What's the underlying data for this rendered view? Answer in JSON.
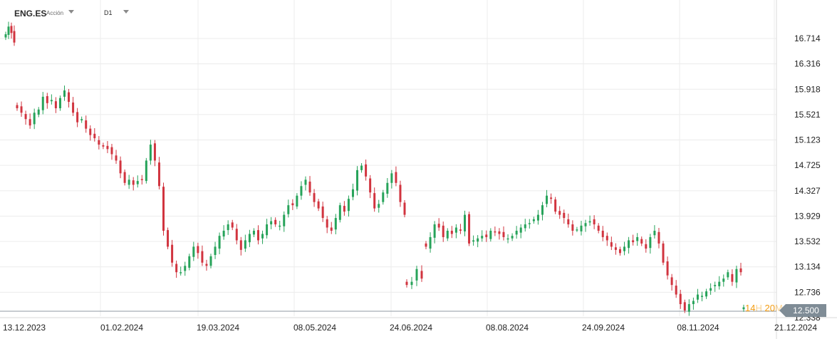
{
  "header": {
    "symbol": "ENG.ES",
    "asset_type": "Acción",
    "timeframe": "D1"
  },
  "countdown": {
    "h": "14",
    "h_unit": "H",
    "m": "20",
    "m_unit": "M"
  },
  "colors": {
    "up": "#27a35a",
    "down": "#d1343f",
    "grid": "#ececec",
    "current_price": "#7f8c96"
  },
  "chart_data": {
    "type": "candlestick",
    "y_ticks": [
      "16.714",
      "16.316",
      "15.918",
      "15.521",
      "15.123",
      "14.725",
      "14.327",
      "13.929",
      "13.532",
      "13.134",
      "12.736",
      "12.338"
    ],
    "y_tick_values": [
      16.714,
      16.316,
      15.918,
      15.521,
      15.123,
      14.725,
      14.327,
      13.929,
      13.532,
      13.134,
      12.736,
      12.338
    ],
    "ylim": [
      12.2,
      17.15
    ],
    "x_ticks": [
      "13.12.2023",
      "01.02.2024",
      "19.03.2024",
      "08.05.2024",
      "24.06.2024",
      "08.08.2024",
      "24.09.2024",
      "08.11.2024",
      "21.12.2024"
    ],
    "current_price": "12.500",
    "current_price_value": 12.5,
    "grid": true,
    "series": [
      {
        "segment": 1,
        "closes": [
          16.78,
          16.9,
          16.8,
          16.65
        ],
        "note_range": "13.12.2023"
      },
      {
        "segment": 2,
        "closes": [
          15.62,
          15.55,
          15.45,
          15.35,
          15.55,
          15.6,
          15.8,
          15.7,
          15.75,
          15.62,
          15.78,
          15.9,
          15.72,
          15.55,
          15.4,
          15.45,
          15.3,
          15.2,
          15.15,
          15.05,
          15.02,
          14.98,
          14.9,
          14.8,
          14.6,
          14.45,
          14.5,
          14.42,
          14.48,
          14.5,
          14.8,
          15.05,
          14.8,
          14.4,
          13.7,
          13.45,
          13.2,
          13.05,
          13.05,
          13.15,
          13.3,
          13.45,
          13.35,
          13.2,
          13.15,
          13.3,
          13.45,
          13.62,
          13.7,
          13.8,
          13.75,
          13.55,
          13.4,
          13.55,
          13.65,
          13.7,
          13.55,
          13.65,
          13.8,
          13.85,
          13.8,
          13.78,
          13.95,
          14.1,
          14.1,
          14.25,
          14.4,
          14.5,
          14.3,
          14.15,
          14.05,
          13.9,
          13.75,
          13.7,
          13.9,
          14.1,
          14.0,
          14.2,
          14.35,
          14.65,
          14.72,
          14.55,
          14.3,
          14.05,
          14.12,
          14.3,
          14.45,
          14.6,
          14.45,
          14.15,
          13.95
        ],
        "note_range": "14.12.2023 – 20.06.2024"
      },
      {
        "segment": 3,
        "closes": [
          12.85,
          12.9,
          13.1,
          12.95
        ],
        "note_range": "24.06.2024"
      },
      {
        "segment": 4,
        "closes": [
          13.45,
          13.6,
          13.8,
          13.75,
          13.6,
          13.7,
          13.65,
          13.75,
          13.7,
          13.95,
          13.5,
          13.55,
          13.58,
          13.62,
          13.6,
          13.7,
          13.68,
          13.65,
          13.6,
          13.58,
          13.62,
          13.7,
          13.75,
          13.8,
          13.82,
          13.88,
          13.95,
          14.1,
          14.25,
          14.2,
          14.0,
          13.95,
          13.9,
          13.8,
          13.7,
          13.72,
          13.78,
          13.82,
          13.85,
          13.8,
          13.7,
          13.6,
          13.55,
          13.45,
          13.4,
          13.35,
          13.45,
          13.55,
          13.52,
          13.6,
          13.5,
          13.42,
          13.6,
          13.7,
          13.5,
          13.2,
          13.0,
          12.85,
          12.7,
          12.55,
          12.45,
          12.55,
          12.6,
          12.7,
          12.68,
          12.75,
          12.8,
          12.85,
          12.9,
          12.95,
          13.05,
          12.9,
          13.1,
          13.05
        ],
        "note_range": "10.07.2024 – 06.12.2024"
      },
      {
        "segment": 5,
        "closes": [
          12.5
        ],
        "note_range": "current"
      }
    ]
  }
}
